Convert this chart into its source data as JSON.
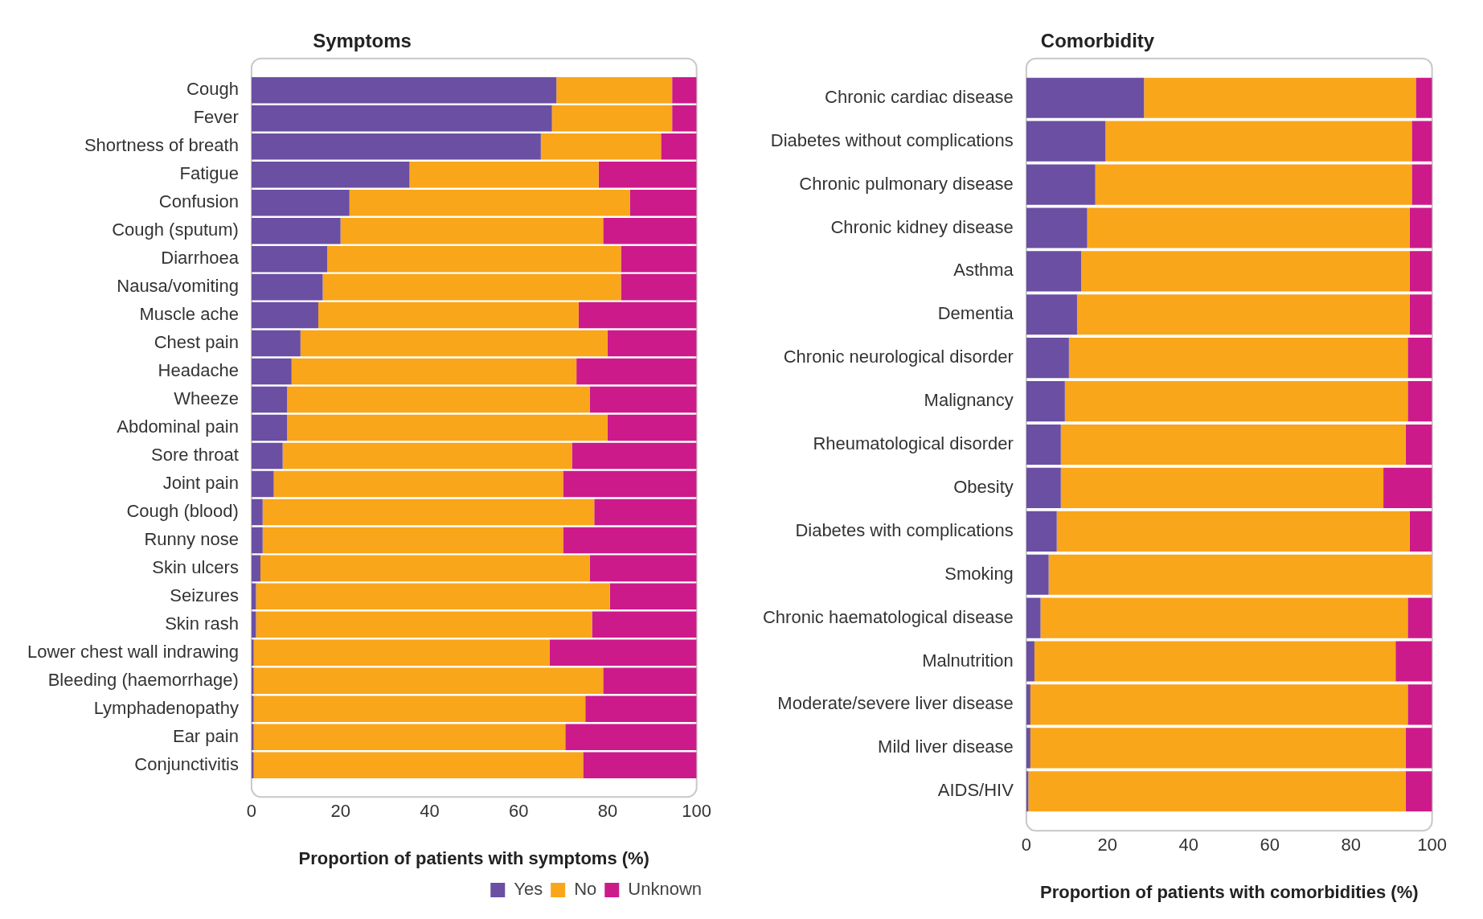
{
  "chart_data": [
    {
      "type": "bar",
      "orientation": "horizontal",
      "stacked": true,
      "title": "Symptoms",
      "xlabel": "Proportion of patients with symptoms (%)",
      "categories": [
        "Cough",
        "Fever",
        "Shortness of breath",
        "Fatigue",
        "Confusion",
        "Cough (sputum)",
        "Diarrhoea",
        "Nausa/vomiting",
        "Muscle ache",
        "Chest pain",
        "Headache",
        "Wheeze",
        "Abdominal pain",
        "Sore throat",
        "Joint pain",
        "Cough (blood)",
        "Runny nose",
        "Skin ulcers",
        "Seizures",
        "Skin rash",
        "Lower chest wall indrawing",
        "Bleeding (haemorrhage)",
        "Lymphadenopathy",
        "Ear pain",
        "Conjunctivitis"
      ],
      "xlim": [
        0,
        100
      ],
      "xticks": [
        0,
        20,
        40,
        60,
        80,
        100
      ],
      "grid": false,
      "legend": "bottom right",
      "series": [
        {
          "name": "Yes",
          "color": "#6a4fa3",
          "values": [
            68.5,
            67.5,
            65,
            35.5,
            22,
            20,
            17,
            16,
            15,
            11,
            9,
            8,
            8,
            7,
            5,
            2.5,
            2.5,
            2,
            1,
            1,
            0.5,
            0.5,
            0.5,
            0.5,
            0.5
          ]
        },
        {
          "name": "No",
          "color": "#f9a61a",
          "values": [
            26,
            27,
            27,
            42.5,
            63,
            59,
            66,
            67,
            58.5,
            69,
            64,
            68,
            72,
            65,
            65,
            74.5,
            67.5,
            74,
            79.5,
            75.5,
            66.5,
            78.5,
            74.5,
            70,
            74
          ]
        },
        {
          "name": "Unknown",
          "color": "#cc1a8a",
          "values": [
            5.5,
            5.5,
            8,
            22,
            15,
            21,
            17,
            17,
            26.5,
            20,
            27,
            24,
            20,
            28,
            30,
            23,
            30,
            24,
            19.5,
            23.5,
            33,
            21,
            25,
            29.5,
            25.5
          ]
        }
      ]
    },
    {
      "type": "bar",
      "orientation": "horizontal",
      "stacked": true,
      "title": "Comorbidity",
      "xlabel": "Proportion of patients with comorbidities (%)",
      "categories": [
        "Chronic cardiac disease",
        "Diabetes without complications",
        "Chronic pulmonary disease",
        "Chronic kidney disease",
        "Asthma",
        "Dementia",
        "Chronic neurological disorder",
        "Malignancy",
        "Rheumatological disorder",
        "Obesity",
        "Diabetes with complications",
        "Smoking",
        "Chronic haematological disease",
        "Malnutrition",
        "Moderate/severe liver disease",
        "Mild liver disease",
        "AIDS/HIV"
      ],
      "xlim": [
        0,
        100
      ],
      "xticks": [
        0,
        20,
        40,
        60,
        80,
        100
      ],
      "grid": false,
      "series": [
        {
          "color": "#6a4fa3",
          "values": [
            29,
            19.5,
            17,
            15,
            13.5,
            12.5,
            10.5,
            9.5,
            8.5,
            8.5,
            7.5,
            5.5,
            3.5,
            2,
            1,
            1,
            0.5
          ]
        },
        {
          "color": "#f9a61a",
          "values": [
            67,
            75.5,
            78,
            79.5,
            81,
            82,
            83.5,
            84.5,
            85,
            79.5,
            87,
            94.5,
            90.5,
            89,
            93,
            92.5,
            93
          ]
        },
        {
          "color": "#cc1a8a",
          "values": [
            4,
            5,
            5,
            5.5,
            5.5,
            5.5,
            6,
            6,
            6.5,
            12,
            5.5,
            0,
            6,
            9,
            6,
            6.5,
            6.5
          ]
        }
      ]
    }
  ]
}
